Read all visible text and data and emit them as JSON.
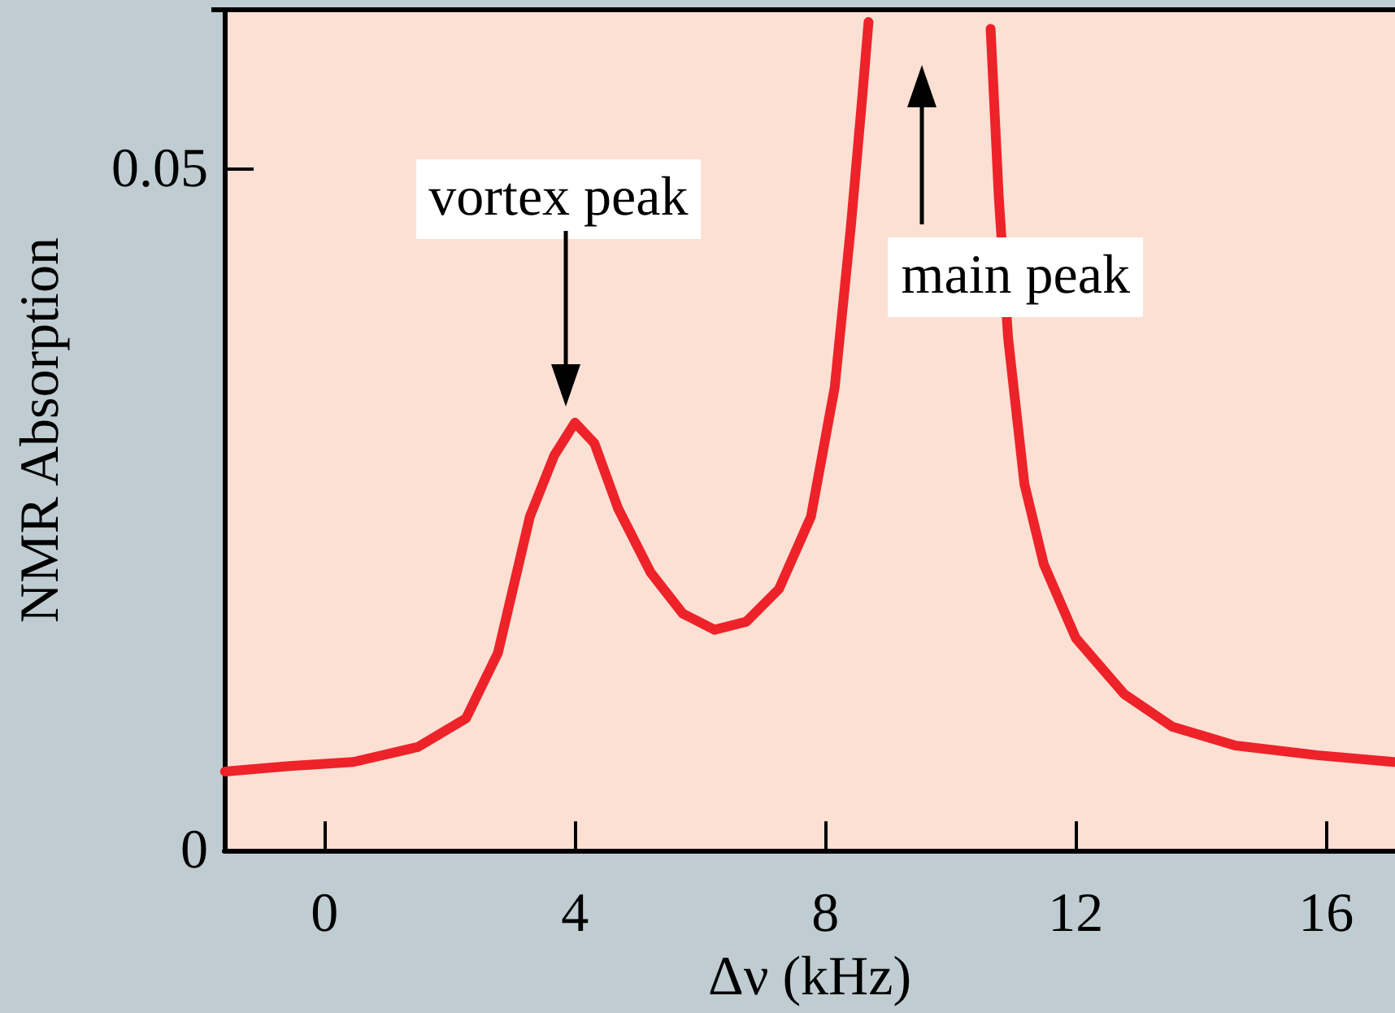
{
  "chart_data": {
    "type": "line",
    "xlabel": "Δν (kHz)",
    "ylabel": "NMR Absorption",
    "xlim": [
      -1.6,
      17.1
    ],
    "xticks": [
      0,
      4,
      8,
      12,
      16
    ],
    "ylim": [
      0,
      0.0617
    ],
    "yticks": [
      0,
      0.05
    ],
    "grid": false,
    "marker": "none",
    "line_style": "solid",
    "series": [
      {
        "color": "#ee2229",
        "x": [
          -1.59,
          -0.56,
          0.46,
          1.49,
          2.26,
          2.77,
          3.28,
          3.67,
          4.0,
          4.31,
          4.69,
          5.21,
          5.72,
          6.23,
          6.74,
          7.26,
          7.77,
          8.15,
          8.41,
          8.59,
          8.69,
          9.7,
          10.64,
          10.77,
          10.92,
          11.18,
          11.49,
          12.0,
          12.77,
          13.54,
          14.56,
          15.85,
          17.08
        ],
        "values": [
          0.0058,
          0.0062,
          0.0065,
          0.0076,
          0.0097,
          0.0145,
          0.0245,
          0.029,
          0.0314,
          0.0299,
          0.0251,
          0.0204,
          0.0174,
          0.0162,
          0.0168,
          0.0192,
          0.0245,
          0.034,
          0.0459,
          0.0553,
          0.0608,
          null,
          0.0603,
          0.048,
          0.0376,
          0.0269,
          0.021,
          0.0156,
          0.0115,
          0.0091,
          0.0077,
          0.007,
          0.0065
        ]
      }
    ],
    "annotations": [
      "vortex peak",
      "main peak"
    ]
  }
}
